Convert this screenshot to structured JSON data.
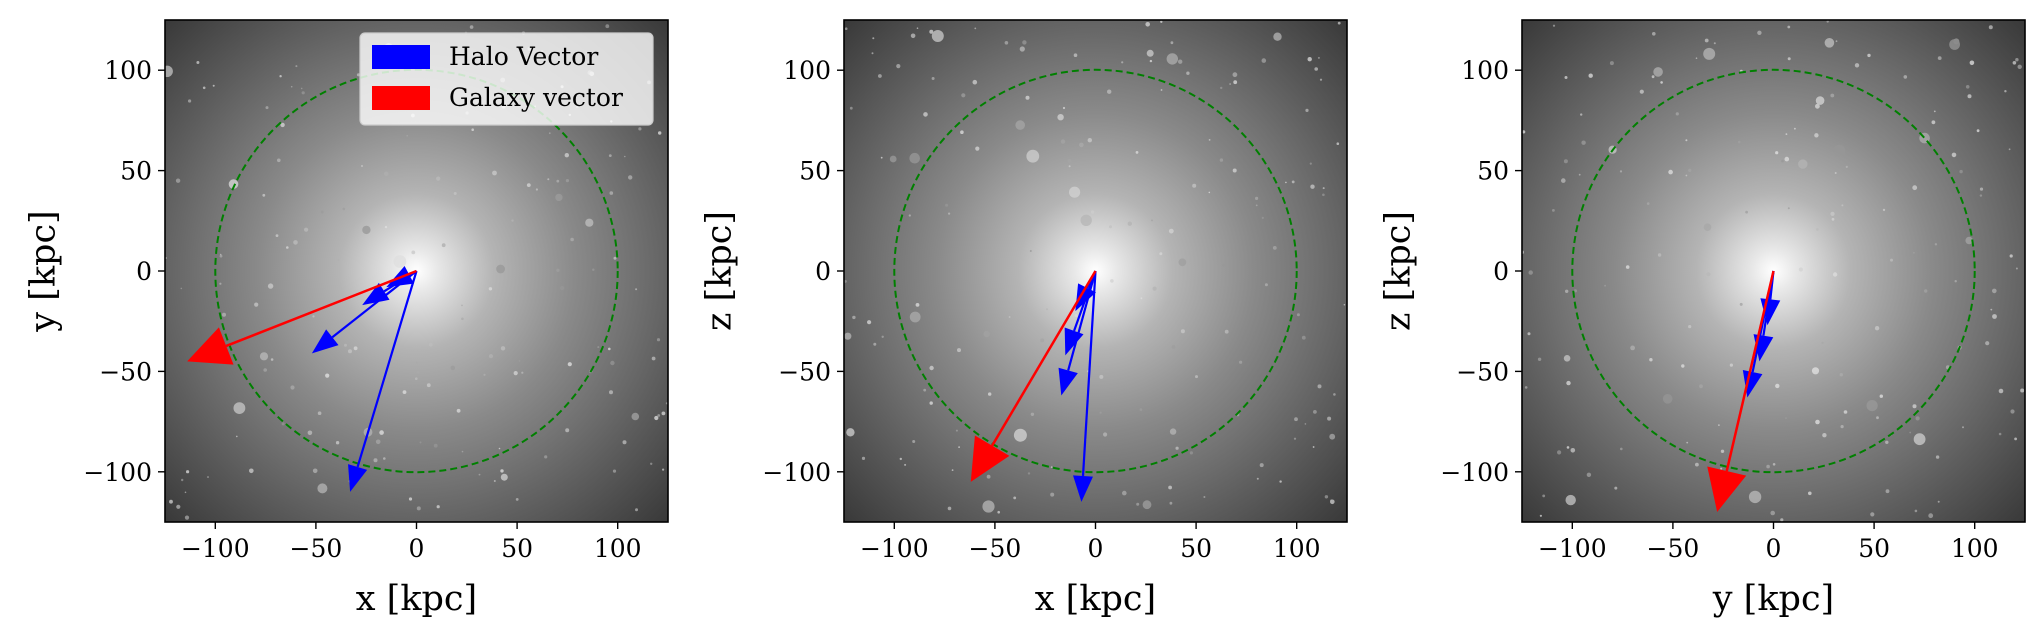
{
  "legend": {
    "items": [
      {
        "label": "Halo Vector",
        "color": "#0000ff"
      },
      {
        "label": "Galaxy vector",
        "color": "#ff0000"
      }
    ],
    "placement": "top-right of first panel"
  },
  "chart_data": [
    {
      "type": "scatter",
      "xlabel": "x [kpc]",
      "ylabel": "y [kpc]",
      "xlim": [
        -125,
        125
      ],
      "ylim": [
        -125,
        125
      ],
      "xticks": [
        -100,
        -50,
        0,
        50,
        100
      ],
      "yticks": [
        -100,
        -50,
        0,
        50,
        100
      ],
      "xticklabels": [
        "−100",
        "−50",
        "0",
        "50",
        "100"
      ],
      "yticklabels": [
        "−100",
        "−50",
        "0",
        "50",
        "100"
      ],
      "background": "grayscale dark-matter density map",
      "circle": {
        "center": [
          0,
          0
        ],
        "radius": 100,
        "color": "#008000",
        "style": "dashed"
      },
      "halo_vectors": [
        [
          -15,
          -8
        ],
        [
          -27,
          -17
        ],
        [
          -52,
          -41
        ],
        [
          -33,
          -110
        ]
      ],
      "galaxy_vector": [
        -114,
        -45
      ],
      "show_legend": true
    },
    {
      "type": "scatter",
      "xlabel": "x [kpc]",
      "ylabel": "z [kpc]",
      "xlim": [
        -125,
        125
      ],
      "ylim": [
        -125,
        125
      ],
      "xticks": [
        -100,
        -50,
        0,
        50,
        100
      ],
      "yticks": [
        -100,
        -50,
        0,
        50,
        100
      ],
      "xticklabels": [
        "−100",
        "−50",
        "0",
        "50",
        "100"
      ],
      "yticklabels": [
        "−100",
        "−50",
        "0",
        "50",
        "100"
      ],
      "background": "grayscale dark-matter density map",
      "circle": {
        "center": [
          0,
          0
        ],
        "radius": 100,
        "color": "#008000",
        "style": "dashed"
      },
      "halo_vectors": [
        [
          -10,
          -20
        ],
        [
          -15,
          -42
        ],
        [
          -17,
          -62
        ],
        [
          -7,
          -115
        ]
      ],
      "galaxy_vector": [
        -62,
        -105
      ],
      "show_legend": false
    },
    {
      "type": "scatter",
      "xlabel": "y [kpc]",
      "ylabel": "z [kpc]",
      "xlim": [
        -125,
        125
      ],
      "ylim": [
        -125,
        125
      ],
      "xticks": [
        -100,
        -50,
        0,
        50,
        100
      ],
      "yticks": [
        -100,
        -50,
        0,
        50,
        100
      ],
      "xticklabels": [
        "−100",
        "−50",
        "0",
        "50",
        "100"
      ],
      "yticklabels": [
        "−100",
        "−50",
        "0",
        "50",
        "100"
      ],
      "background": "grayscale dark-matter density map",
      "circle": {
        "center": [
          0,
          0
        ],
        "radius": 100,
        "color": "#008000",
        "style": "dashed"
      },
      "halo_vectors": [
        [
          -3,
          -27
        ],
        [
          -7,
          -45
        ],
        [
          -13,
          -63
        ]
      ],
      "galaxy_vector": [
        -28,
        -120
      ],
      "show_legend": false
    }
  ]
}
